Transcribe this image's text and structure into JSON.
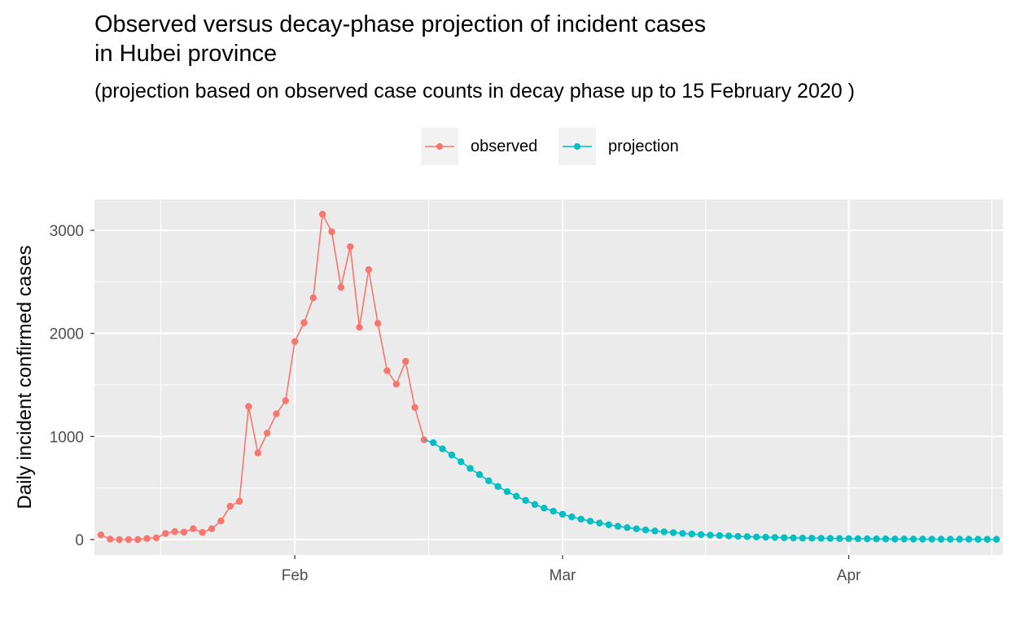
{
  "chart_data": {
    "type": "line",
    "title_lines": [
      "Observed versus decay-phase projection of incident cases",
      "in Hubei province"
    ],
    "subtitle": "(projection based on observed case counts in decay phase up to 15 February 2020 )",
    "xlabel": "",
    "ylabel": "Daily incident confirmed cases",
    "x_unit": "days since 1 January 2020",
    "xlim": [
      9.3,
      107.7
    ],
    "ylim": [
      -150,
      3300
    ],
    "grid": true,
    "legend_position": "top",
    "x_ticks": [
      {
        "label": "Feb",
        "value": 31
      },
      {
        "label": "Mar",
        "value": 60
      },
      {
        "label": "Apr",
        "value": 91
      }
    ],
    "y_ticks": [
      {
        "label": "0",
        "value": 0
      },
      {
        "label": "1000",
        "value": 1000
      },
      {
        "label": "2000",
        "value": 2000
      },
      {
        "label": "3000",
        "value": 3000
      }
    ],
    "series": [
      {
        "name": "observed",
        "color": "#F8766D",
        "x": [
          10,
          11,
          12,
          13,
          14,
          15,
          16,
          17,
          18,
          19,
          20,
          21,
          22,
          23,
          24,
          25,
          26,
          27,
          28,
          29,
          30,
          31,
          32,
          33,
          34,
          35,
          36,
          37,
          38,
          39,
          40,
          41,
          42,
          43,
          44,
          45
        ],
        "values": [
          45,
          4,
          0,
          0,
          0,
          10,
          17,
          59,
          77,
          72,
          105,
          69,
          105,
          180,
          323,
          371,
          1291,
          840,
          1032,
          1220,
          1347,
          1921,
          2103,
          2345,
          3156,
          2987,
          2447,
          2841,
          2059,
          2618,
          2097,
          1638,
          1508,
          1728,
          1282,
          968
        ]
      },
      {
        "name": "projection",
        "color": "#00BFC4",
        "x": [
          46,
          47,
          48,
          49,
          50,
          51,
          52,
          53,
          54,
          55,
          56,
          57,
          58,
          59,
          60,
          61,
          62,
          63,
          64,
          65,
          66,
          67,
          68,
          69,
          70,
          71,
          72,
          73,
          74,
          75,
          76,
          77,
          78,
          79,
          80,
          81,
          82,
          83,
          84,
          85,
          86,
          87,
          88,
          89,
          90,
          91,
          92,
          93,
          94,
          95,
          96,
          97,
          98,
          99,
          100,
          101,
          102,
          103,
          104,
          105,
          106,
          107
        ],
        "values": [
          940,
          880,
          820,
          755,
          690,
          630,
          570,
          515,
          465,
          420,
          380,
          340,
          305,
          275,
          245,
          220,
          198,
          178,
          160,
          144,
          129,
          116,
          104,
          93,
          83,
          75,
          67,
          60,
          54,
          48,
          43,
          39,
          35,
          31,
          28,
          25,
          22,
          20,
          18,
          16,
          14,
          13,
          12,
          11,
          10,
          9,
          8,
          7,
          6,
          6,
          5,
          5,
          4,
          4,
          4,
          3,
          3,
          3,
          3,
          2,
          2,
          2
        ]
      }
    ]
  }
}
